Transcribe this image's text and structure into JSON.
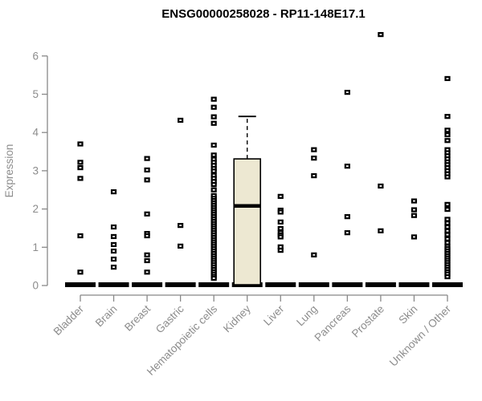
{
  "title": "ENSG00000258028 - RP11-148E17.1",
  "colors": {
    "background": "#ffffff",
    "title": "#000000",
    "axis_line": "#888888",
    "axis_text": "#8c8c8c",
    "point": "#000000",
    "point_center": "#ffffff",
    "zero_bar": "#000000",
    "box_fill": "#ede8d2",
    "box_border": "#000000",
    "median": "#000000"
  },
  "chart_data": {
    "type": "scatter",
    "subtype": "strip-plot-with-boxplot",
    "title": "ENSG00000258028 - RP11-148E17.1",
    "xlabel": "",
    "ylabel": "Expression",
    "ylim": [
      0,
      6
    ],
    "yticks": [
      0,
      1,
      2,
      3,
      4,
      5,
      6
    ],
    "grid": false,
    "legend": "none",
    "categories": [
      "Bladder",
      "Brain",
      "Breast",
      "Gastric",
      "Hematopoietic cells",
      "Kidney",
      "Liver",
      "Lung",
      "Pancreas",
      "Prostate",
      "Skin",
      "Unknown / Other"
    ],
    "zero_bar_categories": [
      "Bladder",
      "Brain",
      "Breast",
      "Gastric",
      "Hematopoietic cells",
      "Kidney",
      "Liver",
      "Lung",
      "Pancreas",
      "Prostate",
      "Skin",
      "Unknown / Other"
    ],
    "series": [
      {
        "category": "Bladder",
        "points": [
          3.7,
          3.22,
          3.08,
          2.8,
          1.3,
          0.35
        ]
      },
      {
        "category": "Brain",
        "points": [
          2.45,
          1.53,
          1.28,
          1.07,
          0.9,
          0.69,
          0.48
        ]
      },
      {
        "category": "Breast",
        "points": [
          3.32,
          3.02,
          2.76,
          1.87,
          1.36,
          1.3,
          0.8,
          0.65,
          0.35
        ]
      },
      {
        "category": "Gastric",
        "points": [
          4.32,
          1.57,
          1.03
        ]
      },
      {
        "category": "Hematopoietic cells",
        "points": [
          4.87,
          4.66,
          4.41,
          4.24,
          3.67,
          3.41,
          3.3,
          3.22,
          3.14,
          3.06,
          2.99,
          2.88,
          2.8,
          2.72,
          2.64,
          2.5,
          2.35,
          2.28,
          2.22,
          2.16,
          2.1,
          2.04,
          1.98,
          1.92,
          1.86,
          1.8,
          1.74,
          1.68,
          1.62,
          1.56,
          1.5,
          1.44,
          1.38,
          1.32,
          1.26,
          1.2,
          1.14,
          1.08,
          1.02,
          0.96,
          0.9,
          0.84,
          0.78,
          0.72,
          0.66,
          0.6,
          0.54,
          0.48,
          0.42,
          0.36,
          0.3,
          0.24,
          0.19
        ]
      },
      {
        "category": "Kidney",
        "points": []
      },
      {
        "category": "Liver",
        "points": [
          2.33,
          1.97,
          1.92,
          1.66,
          1.49,
          1.38,
          1.32,
          1.27,
          1.01,
          0.92
        ]
      },
      {
        "category": "Lung",
        "points": [
          3.55,
          3.33,
          2.87,
          0.8
        ]
      },
      {
        "category": "Pancreas",
        "points": [
          5.05,
          3.12,
          1.8,
          1.38
        ]
      },
      {
        "category": "Prostate",
        "points": [
          6.56,
          2.6,
          1.43
        ]
      },
      {
        "category": "Skin",
        "points": [
          2.21,
          1.98,
          1.83,
          1.27
        ]
      },
      {
        "category": "Unknown / Other",
        "points": [
          5.41,
          4.42,
          4.06,
          3.94,
          3.79,
          3.55,
          3.47,
          3.39,
          3.31,
          3.23,
          3.16,
          3.08,
          3.0,
          2.92,
          2.84,
          2.12,
          1.99,
          1.73,
          1.63,
          1.53,
          1.43,
          1.33,
          1.22,
          1.12,
          1.02,
          0.96,
          0.9,
          0.84,
          0.78,
          0.72,
          0.66,
          0.6,
          0.54,
          0.48,
          0.42,
          0.36,
          0.3,
          0.23
        ]
      }
    ],
    "boxplot": {
      "category": "Kidney",
      "q1": 0.02,
      "median": 2.08,
      "q3": 3.31,
      "whisker_high": 4.42,
      "whisker_low": null
    }
  }
}
